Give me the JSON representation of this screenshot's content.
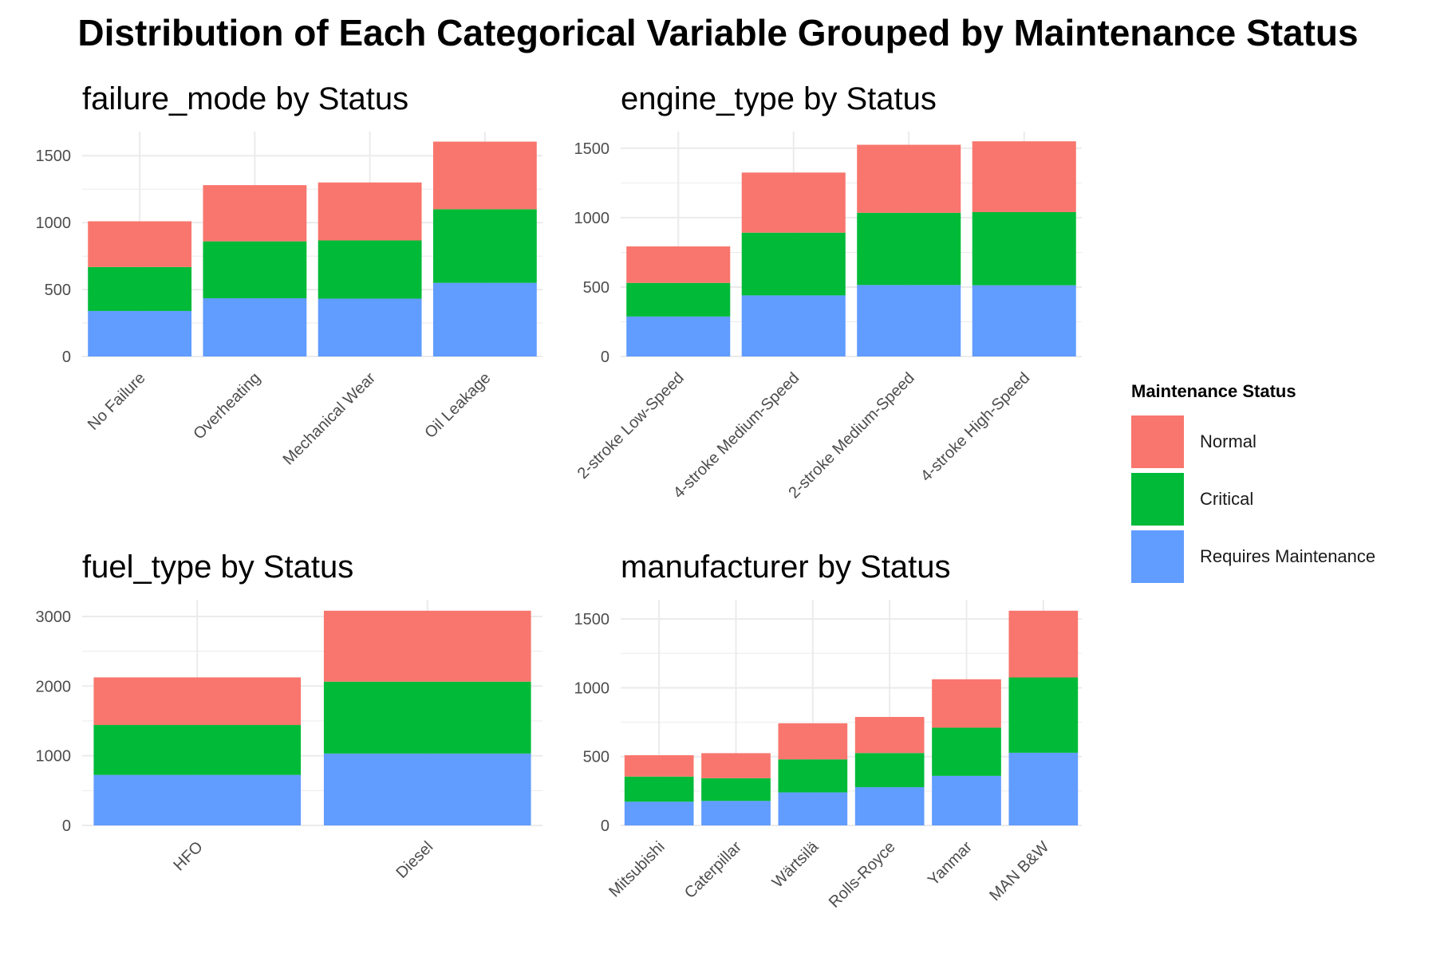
{
  "title": "Distribution of Each Categorical Variable Grouped by Maintenance Status",
  "legend": {
    "title": "Maintenance Status",
    "placement": "right",
    "items": [
      {
        "label": "Normal",
        "color": "#F8766D"
      },
      {
        "label": "Critical",
        "color": "#00BA38"
      },
      {
        "label": "Requires Maintenance",
        "color": "#619CFF"
      }
    ]
  },
  "chart_data": [
    {
      "type": "bar",
      "stacked": true,
      "title": "failure_mode by Status",
      "categories": [
        "No Failure",
        "Overheating",
        "Mechanical Wear",
        "Oil Leakage"
      ],
      "series": [
        {
          "name": "Requires Maintenance",
          "color": "#619CFF",
          "values": [
            340,
            435,
            432,
            550
          ]
        },
        {
          "name": "Critical",
          "color": "#00BA38",
          "values": [
            328,
            425,
            435,
            550
          ]
        },
        {
          "name": "Normal",
          "color": "#F8766D",
          "values": [
            342,
            420,
            433,
            505
          ]
        }
      ],
      "ylim": [
        0,
        1680
      ],
      "yticks": [
        0,
        500,
        1000,
        1500
      ],
      "grid": true
    },
    {
      "type": "bar",
      "stacked": true,
      "title": "engine_type by Status",
      "categories": [
        "2-stroke Low-Speed",
        "4-stroke Medium-Speed",
        "2-stroke Medium-Speed",
        "4-stroke High-Speed"
      ],
      "series": [
        {
          "name": "Requires Maintenance",
          "color": "#619CFF",
          "values": [
            288,
            440,
            515,
            513
          ]
        },
        {
          "name": "Critical",
          "color": "#00BA38",
          "values": [
            242,
            452,
            520,
            527
          ]
        },
        {
          "name": "Normal",
          "color": "#F8766D",
          "values": [
            263,
            433,
            490,
            510
          ]
        }
      ],
      "ylim": [
        0,
        1620
      ],
      "yticks": [
        0,
        500,
        1000,
        1500
      ],
      "grid": true
    },
    {
      "type": "bar",
      "stacked": true,
      "title": "fuel_type by Status",
      "categories": [
        "HFO",
        "Diesel"
      ],
      "series": [
        {
          "name": "Requires Maintenance",
          "color": "#619CFF",
          "values": [
            725,
            1032
          ]
        },
        {
          "name": "Critical",
          "color": "#00BA38",
          "values": [
            717,
            1032
          ]
        },
        {
          "name": "Normal",
          "color": "#F8766D",
          "values": [
            683,
            1018
          ]
        }
      ],
      "ylim": [
        0,
        3240
      ],
      "yticks": [
        0,
        1000,
        2000,
        3000
      ],
      "grid": true
    },
    {
      "type": "bar",
      "stacked": true,
      "title": "manufacturer by Status",
      "categories": [
        "Mitsubishi",
        "Caterpillar",
        "Wärtsilä",
        "Rolls-Royce",
        "Yanmar",
        "MAN B&W"
      ],
      "series": [
        {
          "name": "Requires Maintenance",
          "color": "#619CFF",
          "values": [
            172,
            178,
            240,
            278,
            360,
            528
          ]
        },
        {
          "name": "Critical",
          "color": "#00BA38",
          "values": [
            183,
            165,
            240,
            248,
            350,
            547
          ]
        },
        {
          "name": "Normal",
          "color": "#F8766D",
          "values": [
            155,
            182,
            262,
            262,
            352,
            485
          ]
        }
      ],
      "ylim": [
        0,
        1640
      ],
      "yticks": [
        0,
        500,
        1000,
        1500
      ],
      "grid": true
    }
  ]
}
